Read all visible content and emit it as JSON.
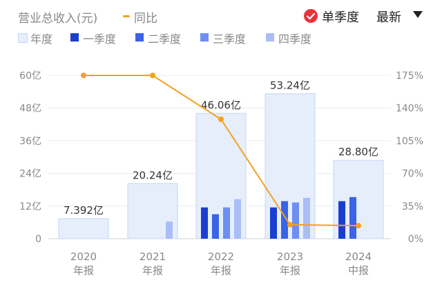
{
  "header": {
    "title": "营业总收入(元)",
    "yoy_label": "同比",
    "single_quarter_label": "单季度",
    "sort_label": "最新"
  },
  "legend": [
    {
      "label": "年度",
      "color": "#e6eefc"
    },
    {
      "label": "一季度",
      "color": "#1a3fd0"
    },
    {
      "label": "二季度",
      "color": "#3a63e8"
    },
    {
      "label": "三季度",
      "color": "#6d8ef2"
    },
    {
      "label": "四季度",
      "color": "#a9bdf6"
    }
  ],
  "chart_data": {
    "type": "bar",
    "categories": [
      {
        "year": "2020",
        "period": "年报"
      },
      {
        "year": "2021",
        "period": "年报"
      },
      {
        "year": "2022",
        "period": "年报"
      },
      {
        "year": "2023",
        "period": "年报"
      },
      {
        "year": "2024",
        "period": "中报"
      }
    ],
    "annual": {
      "values": [
        7.392,
        20.24,
        46.06,
        53.24,
        28.8
      ],
      "labels": [
        "7.392亿",
        "20.24亿",
        "46.06亿",
        "53.24亿",
        "28.80亿"
      ],
      "color": "#e6eefc",
      "border": "#c5d5f7"
    },
    "quarters": [
      {
        "name": "一季度",
        "color": "#1a3fd0",
        "values": [
          0,
          0,
          11.5,
          11.5,
          13.8
        ]
      },
      {
        "name": "二季度",
        "color": "#3a63e8",
        "values": [
          0,
          0,
          9.0,
          13.8,
          15.3
        ]
      },
      {
        "name": "三季度",
        "color": "#6d8ef2",
        "values": [
          0,
          0,
          11.5,
          13.3,
          null
        ]
      },
      {
        "name": "四季度",
        "color": "#a9bdf6",
        "values": [
          0,
          6.3,
          14.5,
          15.0,
          null
        ]
      }
    ],
    "yoy": {
      "name": "同比",
      "color": "#f4a020",
      "values": [
        175,
        175,
        128,
        15,
        14
      ]
    },
    "y_left": {
      "min": 0,
      "max": 60,
      "ticks": [
        "60亿",
        "48亿",
        "36亿",
        "24亿",
        "12亿",
        "0"
      ],
      "tick_values": [
        60,
        48,
        36,
        24,
        12,
        0
      ]
    },
    "y_right": {
      "min": 0,
      "max": 175,
      "ticks": [
        "175%",
        "140%",
        "105%",
        "70%",
        "35%",
        "0%"
      ],
      "tick_values": [
        175,
        140,
        105,
        70,
        35,
        0
      ]
    },
    "grid": true,
    "legend_position": "top-left"
  }
}
